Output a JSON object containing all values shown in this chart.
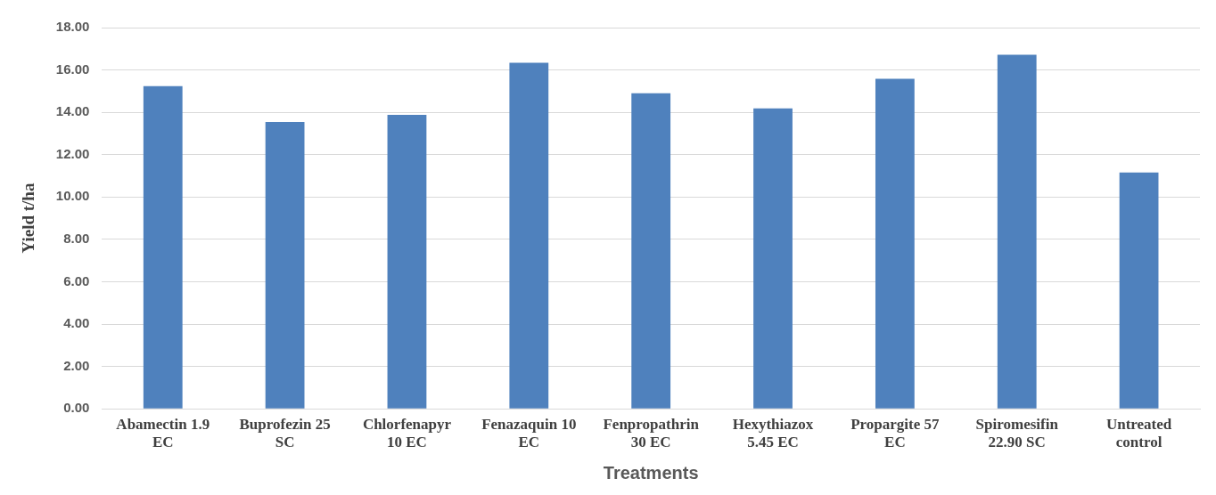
{
  "chart_data": {
    "type": "bar",
    "xlabel": "Treatments",
    "ylabel": "Yield t/ha",
    "categories": [
      "Abamectin 1.9 EC",
      "Buprofezin 25 SC",
      "Chlorfenapyr 10 EC",
      "Fenazaquin 10 EC",
      "Fenpropathrin 30 EC",
      "Hexythiazox 5.45 EC",
      "Propargite 57 EC",
      "Spiromesifin 22.90 SC",
      "Untreated control"
    ],
    "values": [
      15.24,
      13.54,
      13.88,
      16.34,
      14.9,
      14.18,
      15.58,
      16.72,
      11.16
    ],
    "color": "#4f81bd",
    "ylim": [
      0,
      18
    ],
    "yticks": [
      {
        "value": 0,
        "label": "0.00"
      },
      {
        "value": 2,
        "label": "2.00"
      },
      {
        "value": 4,
        "label": "4.00"
      },
      {
        "value": 6,
        "label": "6.00"
      },
      {
        "value": 8,
        "label": "8.00"
      },
      {
        "value": 10,
        "label": "10.00"
      },
      {
        "value": 12,
        "label": "12.00"
      },
      {
        "value": 14,
        "label": "14.00"
      },
      {
        "value": 16,
        "label": "16.00"
      },
      {
        "value": 18,
        "label": "18.00"
      }
    ],
    "grid": "y"
  }
}
